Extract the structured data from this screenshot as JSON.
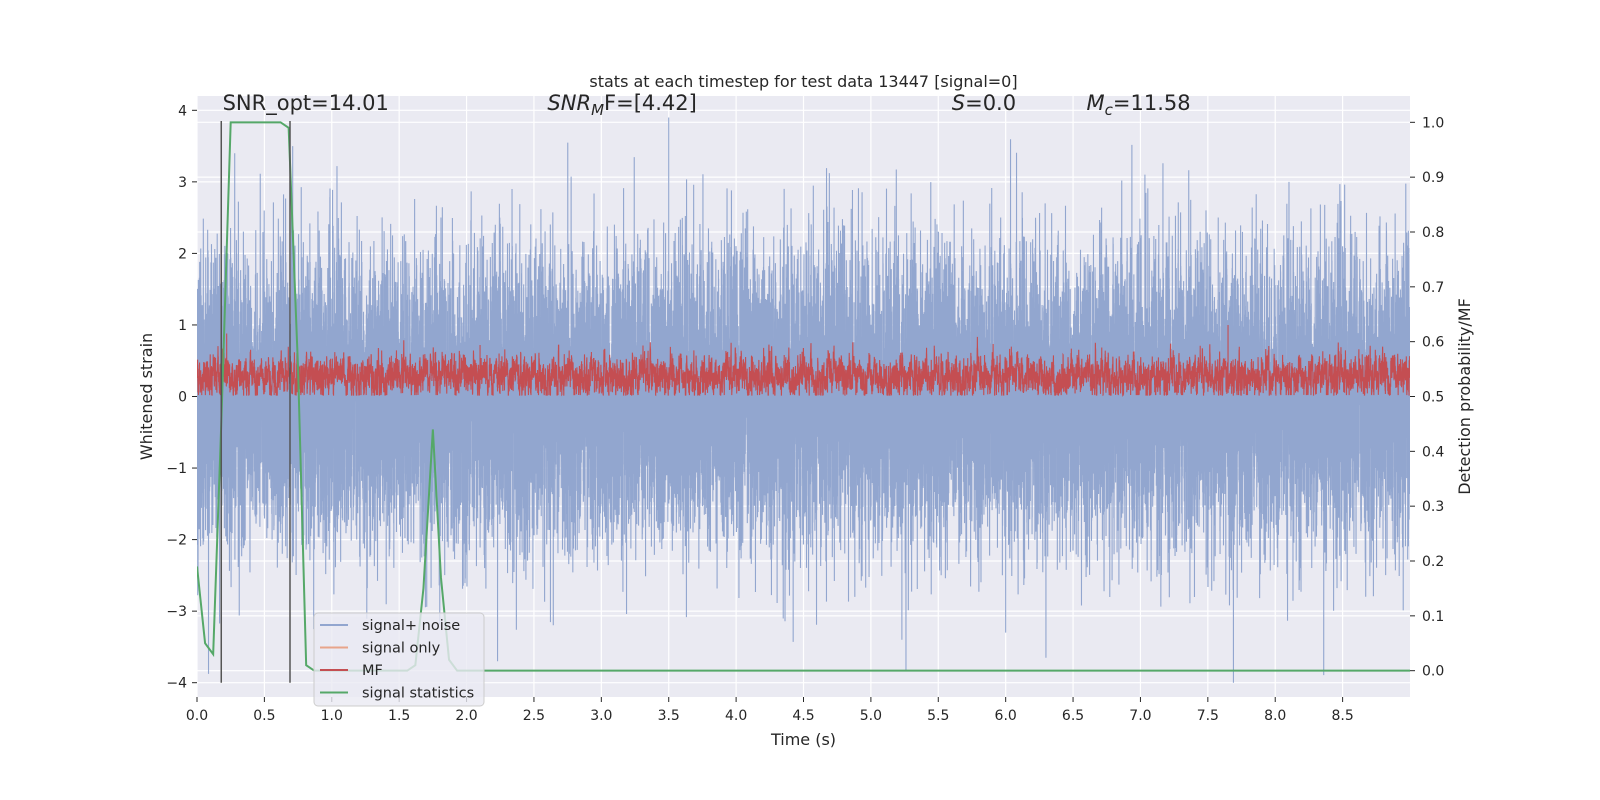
{
  "chart_data": {
    "type": "line",
    "title": "stats at each timestep for test data 13447 [signal=0]",
    "xlabel": "Time (s)",
    "ylabel": "Whitened strain",
    "ylabel_right": "Detection probability/MF",
    "xlim": [
      0,
      9.0
    ],
    "ylim": [
      -4.2,
      4.2
    ],
    "ylim_right": [
      -0.048,
      1.048
    ],
    "x_ticks": [
      0.0,
      0.5,
      1.0,
      1.5,
      2.0,
      2.5,
      3.0,
      3.5,
      4.0,
      4.5,
      5.0,
      5.5,
      6.0,
      6.5,
      7.0,
      7.5,
      8.0,
      8.5
    ],
    "x_tick_labels": [
      "0.0",
      "0.5",
      "1.0",
      "1.5",
      "2.0",
      "2.5",
      "3.0",
      "3.5",
      "4.0",
      "4.5",
      "5.0",
      "5.5",
      "6.0",
      "6.5",
      "7.0",
      "7.5",
      "8.0",
      "8.5"
    ],
    "y_ticks": [
      -4,
      -3,
      -2,
      -1,
      0,
      1,
      2,
      3,
      4
    ],
    "y_tick_labels": [
      "−4",
      "−3",
      "−2",
      "−1",
      "0",
      "1",
      "2",
      "3",
      "4"
    ],
    "y_right_ticks": [
      0.0,
      0.1,
      0.2,
      0.3,
      0.4,
      0.5,
      0.6,
      0.7,
      0.8,
      0.9,
      1.0
    ],
    "y_right_tick_labels": [
      "0.0",
      "0.1",
      "0.2",
      "0.3",
      "0.4",
      "0.5",
      "0.6",
      "0.7",
      "0.8",
      "0.9",
      "1.0"
    ],
    "annotations": [
      {
        "id": "snr-opt",
        "text": "SNR_opt=14.01",
        "x": 0.19,
        "y": 4.1
      },
      {
        "id": "snr-mf",
        "pre": "SNR",
        "sub": "M",
        "post": "F=[4.42]",
        "x": 2.6,
        "y": 4.1
      },
      {
        "id": "s-val",
        "pre": "S",
        "post": "=0.0",
        "x": 5.6,
        "y": 4.1
      },
      {
        "id": "mc-val",
        "pre": "M",
        "sub": "c",
        "post": "=11.58",
        "x": 6.6,
        "y": 4.1
      }
    ],
    "vlines": [
      {
        "x": 0.18,
        "y0": -4.0,
        "y1": 3.85,
        "color": "#555555"
      },
      {
        "x": 0.69,
        "y0": -4.0,
        "y1": 3.85,
        "color": "#555555"
      }
    ],
    "series": [
      {
        "name": "signal+ noise",
        "color": "#92a6cf",
        "axis": "left",
        "kind": "noise",
        "sample_rate": 2048,
        "std": 1.0,
        "clip": [
          -4.0,
          3.9
        ],
        "peaks": [
          [
            0.28,
            3.4
          ],
          [
            0.71,
            3.5
          ],
          [
            3.5,
            3.9
          ],
          [
            7.69,
            -4.0
          ],
          [
            5.23,
            -3.4
          ],
          [
            6.0,
            -3.3
          ],
          [
            2.23,
            -3.7
          ],
          [
            4.0,
            -0.95
          ]
        ]
      },
      {
        "name": "signal only",
        "color": "#e8a48a",
        "axis": "left",
        "kind": "none",
        "x": [],
        "y": []
      },
      {
        "name": "MF",
        "color": "#c44e52",
        "axis": "left",
        "kind": "mf",
        "sample_rate": 2048,
        "mean": 0.28,
        "std": 0.14,
        "clip": [
          0.02,
          0.95
        ],
        "peaks": [
          [
            0.22,
            0.88
          ],
          [
            7.65,
            1.0
          ],
          [
            2.1,
            0.72
          ]
        ]
      },
      {
        "name": "signal statistics",
        "color": "#55a868",
        "axis": "right",
        "kind": "line",
        "x": [
          0.0,
          0.06,
          0.12,
          0.18,
          0.25,
          0.31,
          0.37,
          0.43,
          0.5,
          0.56,
          0.62,
          0.68,
          0.75,
          0.81,
          0.87,
          0.93,
          1.0,
          1.06,
          1.12,
          1.18,
          1.25,
          1.31,
          1.37,
          1.43,
          1.5,
          1.56,
          1.62,
          1.68,
          1.75,
          1.81,
          1.87,
          1.93,
          2.0,
          2.5,
          3.0,
          4.0,
          5.0,
          6.0,
          7.0,
          8.0,
          9.0
        ],
        "y": [
          0.19,
          0.05,
          0.03,
          0.45,
          1.0,
          1.0,
          1.0,
          1.0,
          1.0,
          1.0,
          1.0,
          0.99,
          0.55,
          0.01,
          0.0,
          0.0,
          0.0,
          0.0,
          0.0,
          0.0,
          0.0,
          0.0,
          0.0,
          0.0,
          0.0,
          0.0,
          0.01,
          0.15,
          0.44,
          0.17,
          0.02,
          0.0,
          0.0,
          0.0,
          0.0,
          0.0,
          0.0,
          0.0,
          0.0,
          0.0,
          0.0
        ]
      }
    ],
    "legend": {
      "position": "lower-left",
      "entries": [
        {
          "label": "signal+ noise",
          "color": "#92a6cf"
        },
        {
          "label": "signal only",
          "color": "#e8a48a"
        },
        {
          "label": "MF",
          "color": "#c44e52"
        },
        {
          "label": "signal statistics",
          "color": "#55a868"
        }
      ]
    },
    "colors": {
      "plot_background": "#eaeaf2",
      "grid": "#ffffff",
      "text": "#262626"
    }
  }
}
